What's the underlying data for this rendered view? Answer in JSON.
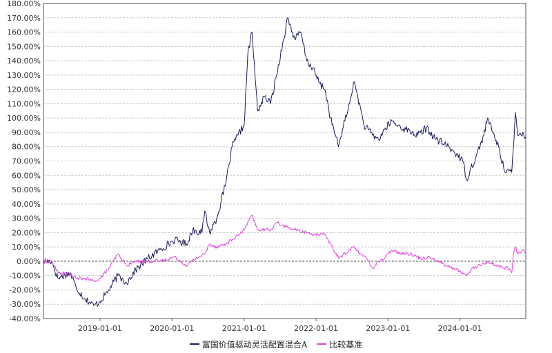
{
  "chart_data": {
    "type": "line",
    "title": "",
    "xlabel": "",
    "ylabel": "",
    "y_unit": "%",
    "ylim": [
      -40,
      180
    ],
    "xlim": [
      "2018-03-20",
      "2024-11-30"
    ],
    "grid": true,
    "legend_position": "bottom-center",
    "y_ticks": [
      "180.00%",
      "170.00%",
      "160.00%",
      "150.00%",
      "140.00%",
      "130.00%",
      "120.00%",
      "110.00%",
      "100.00%",
      "90.00%",
      "80.00%",
      "70.00%",
      "60.00%",
      "50.00%",
      "40.00%",
      "30.00%",
      "20.00%",
      "10.00%",
      "0.00%",
      "-10.00%",
      "-20.00%",
      "-30.00%",
      "-40.00%"
    ],
    "x_ticks": [
      "2019-01-01",
      "2020-01-01",
      "2021-01-01",
      "2022-01-01",
      "2023-01-01",
      "2024-01-01"
    ],
    "series": [
      {
        "name": "富国价值驱动灵活配置混合A",
        "color": "#1a1a5e",
        "points": [
          [
            "2018-03-20",
            0
          ],
          [
            "2018-05-01",
            0
          ],
          [
            "2018-06-01",
            -12
          ],
          [
            "2018-08-01",
            -8
          ],
          [
            "2018-09-01",
            -18
          ],
          [
            "2018-10-15",
            -26
          ],
          [
            "2018-12-01",
            -31
          ],
          [
            "2019-01-01",
            -28
          ],
          [
            "2019-02-15",
            -20
          ],
          [
            "2019-04-01",
            -10
          ],
          [
            "2019-05-15",
            -15
          ],
          [
            "2019-07-01",
            -6
          ],
          [
            "2019-09-01",
            2
          ],
          [
            "2019-11-01",
            8
          ],
          [
            "2020-01-15",
            15
          ],
          [
            "2020-03-15",
            12
          ],
          [
            "2020-04-15",
            22
          ],
          [
            "2020-06-01",
            20
          ],
          [
            "2020-06-15",
            35
          ],
          [
            "2020-07-10",
            20
          ],
          [
            "2020-08-15",
            30
          ],
          [
            "2020-10-01",
            55
          ],
          [
            "2020-11-01",
            80
          ],
          [
            "2020-12-01",
            88
          ],
          [
            "2021-01-01",
            95
          ],
          [
            "2021-01-20",
            145
          ],
          [
            "2021-02-10",
            160
          ],
          [
            "2021-03-10",
            105
          ],
          [
            "2021-04-15",
            115
          ],
          [
            "2021-05-15",
            110
          ],
          [
            "2021-06-15",
            130
          ],
          [
            "2021-07-20",
            155
          ],
          [
            "2021-08-10",
            170
          ],
          [
            "2021-09-15",
            155
          ],
          [
            "2021-10-15",
            160
          ],
          [
            "2021-11-15",
            140
          ],
          [
            "2021-12-15",
            135
          ],
          [
            "2022-01-15",
            125
          ],
          [
            "2022-02-15",
            120
          ],
          [
            "2022-03-15",
            100
          ],
          [
            "2022-04-25",
            80
          ],
          [
            "2022-05-15",
            92
          ],
          [
            "2022-06-20",
            110
          ],
          [
            "2022-07-10",
            125
          ],
          [
            "2022-08-01",
            115
          ],
          [
            "2022-09-01",
            95
          ],
          [
            "2022-10-15",
            88
          ],
          [
            "2022-11-15",
            85
          ],
          [
            "2022-12-15",
            92
          ],
          [
            "2023-01-20",
            98
          ],
          [
            "2023-02-15",
            95
          ],
          [
            "2023-04-01",
            92
          ],
          [
            "2023-06-01",
            88
          ],
          [
            "2023-07-15",
            93
          ],
          [
            "2023-09-01",
            85
          ],
          [
            "2023-10-15",
            82
          ],
          [
            "2023-12-15",
            75
          ],
          [
            "2024-01-15",
            70
          ],
          [
            "2024-02-05",
            57
          ],
          [
            "2024-02-25",
            65
          ],
          [
            "2024-03-20",
            72
          ],
          [
            "2024-05-01",
            88
          ],
          [
            "2024-05-20",
            100
          ],
          [
            "2024-06-15",
            90
          ],
          [
            "2024-07-15",
            80
          ],
          [
            "2024-08-10",
            65
          ],
          [
            "2024-09-20",
            62
          ],
          [
            "2024-10-01",
            85
          ],
          [
            "2024-10-08",
            104
          ],
          [
            "2024-10-20",
            88
          ],
          [
            "2024-11-15",
            90
          ],
          [
            "2024-11-30",
            86
          ]
        ]
      },
      {
        "name": "比较基准",
        "color": "#e040e0",
        "points": [
          [
            "2018-03-20",
            0
          ],
          [
            "2018-05-01",
            0
          ],
          [
            "2018-06-01",
            -8
          ],
          [
            "2018-08-01",
            -9
          ],
          [
            "2018-09-01",
            -12
          ],
          [
            "2018-10-15",
            -12
          ],
          [
            "2018-12-01",
            -14
          ],
          [
            "2019-01-01",
            -12
          ],
          [
            "2019-02-15",
            -5
          ],
          [
            "2019-04-01",
            5
          ],
          [
            "2019-05-15",
            -3
          ],
          [
            "2019-07-01",
            0
          ],
          [
            "2019-09-01",
            0
          ],
          [
            "2019-11-01",
            0
          ],
          [
            "2020-01-15",
            3
          ],
          [
            "2020-03-15",
            -3
          ],
          [
            "2020-05-01",
            2
          ],
          [
            "2020-06-15",
            5
          ],
          [
            "2020-07-10",
            12
          ],
          [
            "2020-08-15",
            10
          ],
          [
            "2020-10-01",
            12
          ],
          [
            "2020-12-01",
            18
          ],
          [
            "2021-01-01",
            22
          ],
          [
            "2021-02-10",
            32
          ],
          [
            "2021-03-10",
            22
          ],
          [
            "2021-05-15",
            22
          ],
          [
            "2021-06-15",
            27
          ],
          [
            "2021-08-01",
            24
          ],
          [
            "2021-09-15",
            22
          ],
          [
            "2021-11-15",
            20
          ],
          [
            "2022-01-15",
            18
          ],
          [
            "2022-02-15",
            19
          ],
          [
            "2022-03-15",
            12
          ],
          [
            "2022-04-25",
            2
          ],
          [
            "2022-06-20",
            8
          ],
          [
            "2022-07-10",
            10
          ],
          [
            "2022-08-15",
            5
          ],
          [
            "2022-09-15",
            2
          ],
          [
            "2022-10-15",
            -5
          ],
          [
            "2022-11-15",
            0
          ],
          [
            "2022-12-15",
            2
          ],
          [
            "2023-01-20",
            8
          ],
          [
            "2023-03-01",
            6
          ],
          [
            "2023-05-01",
            5
          ],
          [
            "2023-06-15",
            2
          ],
          [
            "2023-08-01",
            3
          ],
          [
            "2023-09-15",
            0
          ],
          [
            "2023-10-20",
            -3
          ],
          [
            "2023-12-01",
            -5
          ],
          [
            "2024-01-15",
            -8
          ],
          [
            "2024-02-05",
            -10
          ],
          [
            "2024-03-01",
            -5
          ],
          [
            "2024-05-01",
            -2
          ],
          [
            "2024-05-20",
            0
          ],
          [
            "2024-07-01",
            -3
          ],
          [
            "2024-09-01",
            -5
          ],
          [
            "2024-09-20",
            -8
          ],
          [
            "2024-09-28",
            5
          ],
          [
            "2024-10-08",
            10
          ],
          [
            "2024-10-20",
            5
          ],
          [
            "2024-11-15",
            8
          ],
          [
            "2024-11-30",
            6
          ]
        ]
      }
    ]
  }
}
